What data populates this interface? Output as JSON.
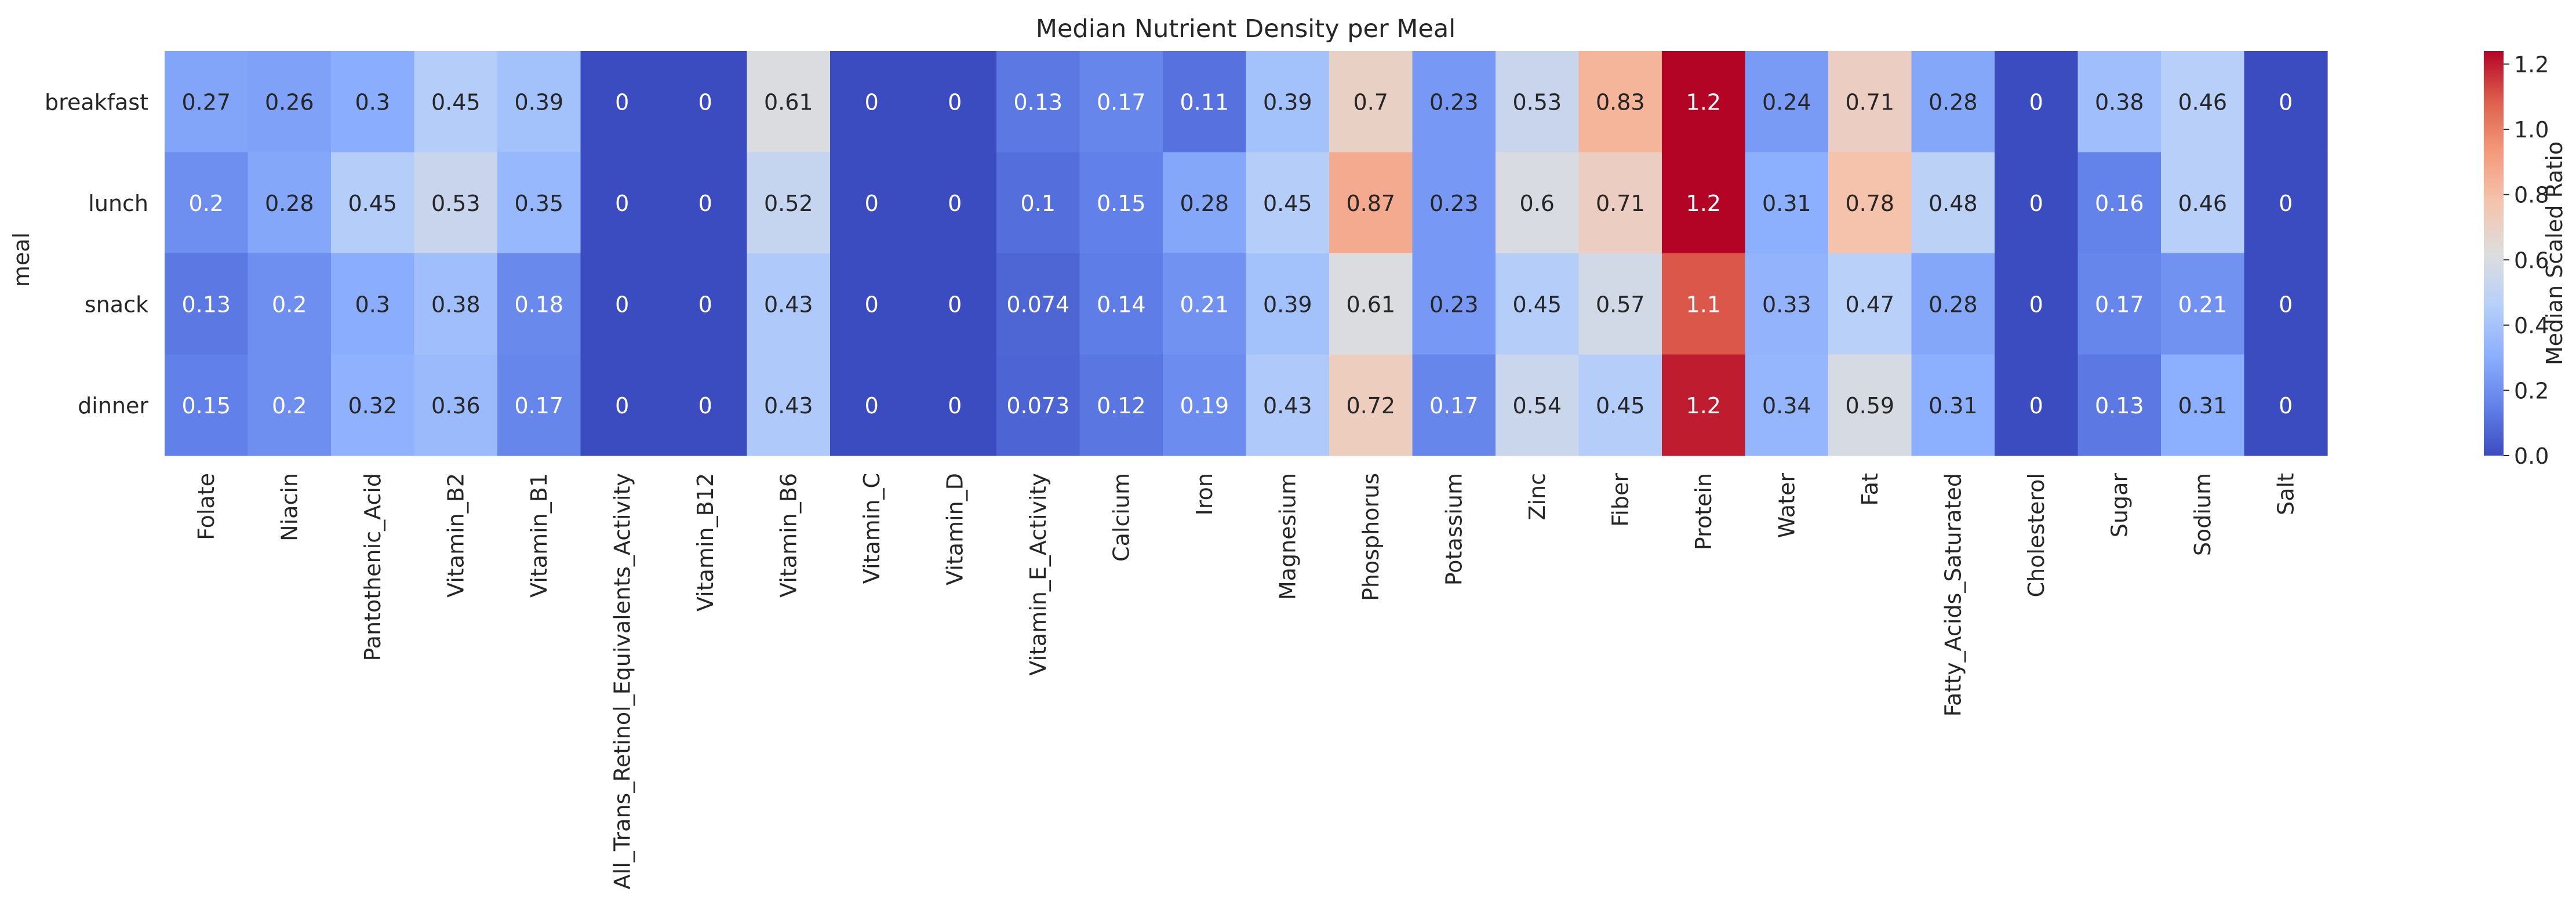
{
  "chart_data": {
    "type": "heatmap",
    "title": "Median Nutrient Density per Meal",
    "xlabel": "",
    "ylabel": "meal",
    "rows": [
      "breakfast",
      "lunch",
      "snack",
      "dinner"
    ],
    "columns": [
      "Folate",
      "Niacin",
      "Pantothenic_Acid",
      "Vitamin_B2",
      "Vitamin_B1",
      "All_Trans_Retinol_Equivalents_Activity",
      "Vitamin_B12",
      "Vitamin_B6",
      "Vitamin_C",
      "Vitamin_D",
      "Vitamin_E_Activity",
      "Calcium",
      "Iron",
      "Magnesium",
      "Phosphorus",
      "Potassium",
      "Zinc",
      "Fiber",
      "Protein",
      "Water",
      "Fat",
      "Fatty_Acids_Saturated",
      "Cholesterol",
      "Sugar",
      "Sodium",
      "Salt"
    ],
    "values": [
      [
        0.27,
        0.26,
        0.3,
        0.45,
        0.39,
        0,
        0,
        0.61,
        0,
        0,
        0.13,
        0.17,
        0.11,
        0.39,
        0.7,
        0.23,
        0.53,
        0.83,
        1.24,
        0.24,
        0.71,
        0.28,
        0,
        0.38,
        0.46,
        0
      ],
      [
        0.2,
        0.28,
        0.45,
        0.53,
        0.35,
        0,
        0,
        0.52,
        0,
        0,
        0.1,
        0.15,
        0.28,
        0.45,
        0.87,
        0.23,
        0.6,
        0.71,
        1.24,
        0.31,
        0.78,
        0.48,
        0,
        0.16,
        0.46,
        0
      ],
      [
        0.13,
        0.2,
        0.3,
        0.38,
        0.18,
        0,
        0,
        0.43,
        0,
        0,
        0.074,
        0.14,
        0.21,
        0.39,
        0.61,
        0.23,
        0.45,
        0.57,
        1.1,
        0.33,
        0.47,
        0.28,
        0,
        0.17,
        0.21,
        0
      ],
      [
        0.15,
        0.2,
        0.32,
        0.36,
        0.17,
        0,
        0,
        0.43,
        0,
        0,
        0.073,
        0.12,
        0.19,
        0.43,
        0.72,
        0.17,
        0.54,
        0.45,
        1.2,
        0.34,
        0.59,
        0.31,
        0,
        0.13,
        0.31,
        0
      ]
    ],
    "annotations": [
      [
        "0.27",
        "0.26",
        "0.3",
        "0.45",
        "0.39",
        "0",
        "0",
        "0.61",
        "0",
        "0",
        "0.13",
        "0.17",
        "0.11",
        "0.39",
        "0.7",
        "0.23",
        "0.53",
        "0.83",
        "1.2",
        "0.24",
        "0.71",
        "0.28",
        "0",
        "0.38",
        "0.46",
        "0"
      ],
      [
        "0.2",
        "0.28",
        "0.45",
        "0.53",
        "0.35",
        "0",
        "0",
        "0.52",
        "0",
        "0",
        "0.1",
        "0.15",
        "0.28",
        "0.45",
        "0.87",
        "0.23",
        "0.6",
        "0.71",
        "1.2",
        "0.31",
        "0.78",
        "0.48",
        "0",
        "0.16",
        "0.46",
        "0"
      ],
      [
        "0.13",
        "0.2",
        "0.3",
        "0.38",
        "0.18",
        "0",
        "0",
        "0.43",
        "0",
        "0",
        "0.074",
        "0.14",
        "0.21",
        "0.39",
        "0.61",
        "0.23",
        "0.45",
        "0.57",
        "1.1",
        "0.33",
        "0.47",
        "0.28",
        "0",
        "0.17",
        "0.21",
        "0"
      ],
      [
        "0.15",
        "0.2",
        "0.32",
        "0.36",
        "0.17",
        "0",
        "0",
        "0.43",
        "0",
        "0",
        "0.073",
        "0.12",
        "0.19",
        "0.43",
        "0.72",
        "0.17",
        "0.54",
        "0.45",
        "1.2",
        "0.34",
        "0.59",
        "0.31",
        "0",
        "0.13",
        "0.31",
        "0"
      ]
    ],
    "colormap": "coolwarm",
    "colorbar": {
      "label": "Median Scaled Ratio",
      "range": [
        0,
        1.24
      ],
      "ticks": [
        0.0,
        0.2,
        0.4,
        0.6,
        0.8,
        1.0,
        1.2
      ],
      "tick_labels": [
        "0.0",
        "0.2",
        "0.4",
        "0.6",
        "0.8",
        "1.0",
        "1.2"
      ]
    }
  }
}
